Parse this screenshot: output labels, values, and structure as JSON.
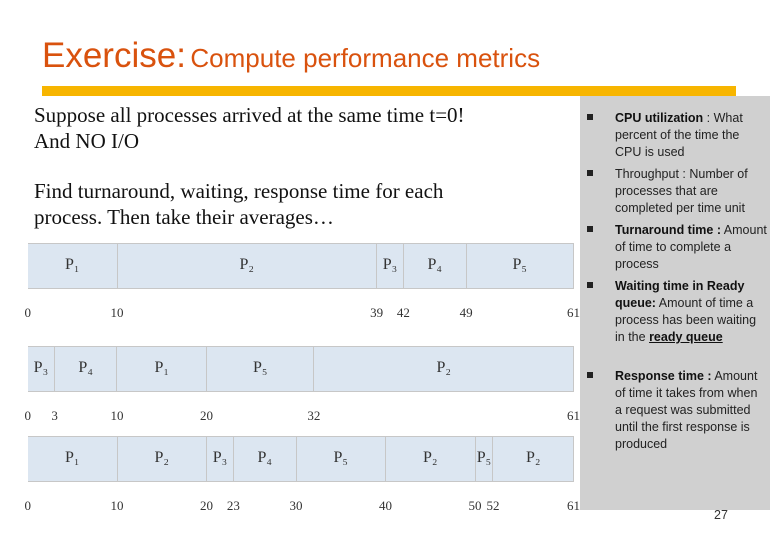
{
  "title": {
    "main": "Exercise:",
    "sub": "Compute performance metrics"
  },
  "left_text": {
    "line1": "Suppose all processes arrived at the same time t=0!",
    "line2": "And NO I/O",
    "line3": "Find  turnaround, waiting, response time for each",
    "line4": "process. Then take their averages…"
  },
  "bullets": [
    {
      "term": "CPU utilization",
      "desc": " : What percent of the time the CPU is used"
    },
    {
      "term": "",
      "desc": "Throughput : Number of processes that are completed per time unit"
    },
    {
      "term": "Turnaround time :",
      "desc": " Amount of time to complete a process"
    },
    {
      "term": "Waiting time in Ready queue:",
      "desc": " Amount of time a process has been waiting in the ",
      "underline": "ready queue"
    },
    {
      "term": "Response time :",
      "desc": " Amount of time it takes from when a request was submitted until the first response is produced"
    }
  ],
  "page_number": "27",
  "gantt": [
    {
      "segments": [
        {
          "label": "P1",
          "start": 0,
          "end": 10
        },
        {
          "label": "P2",
          "start": 10,
          "end": 39
        },
        {
          "label": "P3",
          "start": 39,
          "end": 42
        },
        {
          "label": "P4",
          "start": 42,
          "end": 49
        },
        {
          "label": "P5",
          "start": 49,
          "end": 61
        }
      ],
      "ticks": [
        "0",
        "10",
        "39",
        "42",
        "49",
        "61"
      ]
    },
    {
      "segments": [
        {
          "label": "P3",
          "start": 0,
          "end": 3
        },
        {
          "label": "P4",
          "start": 3,
          "end": 10
        },
        {
          "label": "P1",
          "start": 10,
          "end": 20
        },
        {
          "label": "P5",
          "start": 20,
          "end": 32
        },
        {
          "label": "P2",
          "start": 32,
          "end": 61
        }
      ],
      "ticks": [
        "0",
        "3",
        "10",
        "20",
        "32",
        "61"
      ]
    },
    {
      "segments": [
        {
          "label": "P1",
          "start": 0,
          "end": 10
        },
        {
          "label": "P2",
          "start": 10,
          "end": 20
        },
        {
          "label": "P3",
          "start": 20,
          "end": 23
        },
        {
          "label": "P4",
          "start": 23,
          "end": 30
        },
        {
          "label": "P5",
          "start": 30,
          "end": 40
        },
        {
          "label": "P2",
          "start": 40,
          "end": 50
        },
        {
          "label": "P5",
          "start": 50,
          "end": 52
        },
        {
          "label": "P2",
          "start": 52,
          "end": 61
        }
      ],
      "ticks": [
        "0",
        "10",
        "20",
        "23",
        "30",
        "40",
        "50",
        "52",
        "61"
      ]
    }
  ]
}
